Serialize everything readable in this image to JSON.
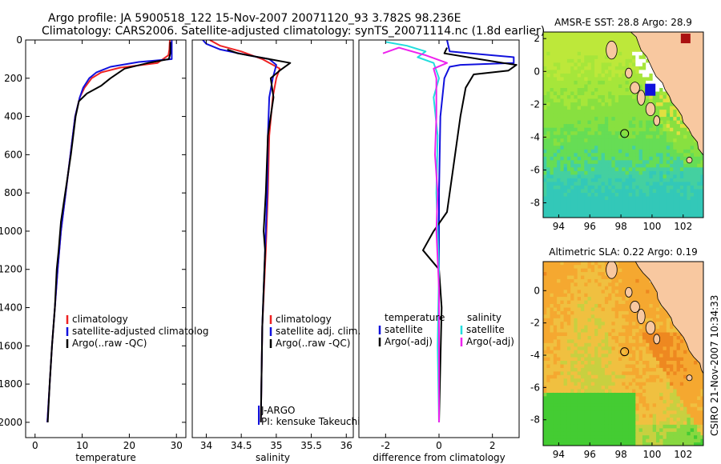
{
  "header": {
    "title_line1": "Argo profile: JA 5900518_122 15-Nov-2007 20071120_93 3.782S 98.236E",
    "title_line2": "Climatology: CARS2006. Satellite-adjusted climatology: synTS_20071114.nc (1.8d earlier)"
  },
  "side_label": "CSIRO 21-Nov-2007 10:34:33",
  "colors": {
    "red": "#ee2222",
    "blue": "#1111dd",
    "black": "#000000",
    "cyan": "#22dddd",
    "magenta": "#ee22ee",
    "land": "#f8c8a0"
  },
  "chart_data": [
    {
      "id": "temperature",
      "type": "line",
      "xlabel": "temperature",
      "ylabel": "",
      "xlim": [
        -2,
        32
      ],
      "ylim": [
        2080,
        0
      ],
      "xticks": [
        0,
        10,
        20,
        30
      ],
      "yticks": [
        0,
        200,
        400,
        600,
        800,
        1000,
        1200,
        1400,
        1600,
        1800,
        2000
      ],
      "legend": [
        "climatology",
        "satellite-adjusted climatolog",
        "Argo(..raw -QC)"
      ],
      "series": [
        {
          "name": "climatology",
          "color": "red",
          "points": [
            [
              28.6,
              0
            ],
            [
              28.5,
              50
            ],
            [
              28.3,
              80
            ],
            [
              26,
              120
            ],
            [
              18,
              145
            ],
            [
              14,
              170
            ],
            [
              12,
              200
            ],
            [
              10.5,
              250
            ],
            [
              9.5,
              300
            ],
            [
              8.5,
              400
            ],
            [
              7.5,
              600
            ],
            [
              6.5,
              800
            ],
            [
              5.5,
              1000
            ],
            [
              4.8,
              1200
            ],
            [
              4.2,
              1400
            ],
            [
              3.6,
              1600
            ],
            [
              3.1,
              1800
            ],
            [
              2.6,
              2000
            ]
          ]
        },
        {
          "name": "satellite-adjusted climatolog",
          "color": "blue",
          "points": [
            [
              29,
              0
            ],
            [
              29,
              60
            ],
            [
              29,
              100
            ],
            [
              22,
              115
            ],
            [
              16,
              140
            ],
            [
              13,
              170
            ],
            [
              11.5,
              200
            ],
            [
              10.2,
              250
            ],
            [
              9.5,
              300
            ],
            [
              8.5,
              400
            ],
            [
              7.5,
              600
            ],
            [
              6.5,
              800
            ],
            [
              5.5,
              1000
            ],
            [
              4.8,
              1200
            ],
            [
              4.2,
              1400
            ],
            [
              3.6,
              1600
            ],
            [
              3.1,
              1800
            ],
            [
              2.6,
              2000
            ]
          ]
        },
        {
          "name": "Argo(..raw -QC)",
          "color": "black",
          "points": [
            [
              28.7,
              10
            ],
            [
              28.7,
              70
            ],
            [
              28.4,
              100
            ],
            [
              24,
              120
            ],
            [
              19,
              150
            ],
            [
              16,
              200
            ],
            [
              14,
              240
            ],
            [
              11,
              280
            ],
            [
              9.3,
              320
            ],
            [
              8.6,
              400
            ],
            [
              7.6,
              600
            ],
            [
              6.4,
              800
            ],
            [
              5.5,
              950
            ],
            [
              5.0,
              1100
            ],
            [
              4.6,
              1200
            ],
            [
              4.2,
              1400
            ],
            [
              3.6,
              1600
            ],
            [
              3.1,
              1800
            ],
            [
              2.7,
              2000
            ]
          ]
        }
      ]
    },
    {
      "id": "salinity",
      "type": "line",
      "xlabel": "salinity",
      "ylabel": "",
      "xlim": [
        33.8,
        36.1
      ],
      "ylim": [
        2080,
        0
      ],
      "xticks": [
        34,
        34.5,
        35,
        35.5,
        36
      ],
      "xtick_labels": [
        "34",
        "34.5",
        "35",
        "35.5",
        "36"
      ],
      "legend": [
        "climatology",
        "satellite adj. clim.",
        "Argo(..raw -QC)"
      ],
      "annotation": [
        "J-ARGO",
        "PI: kensuke Takeuchi"
      ],
      "series": [
        {
          "name": "climatology",
          "color": "red",
          "points": [
            [
              34.05,
              0
            ],
            [
              34.2,
              30
            ],
            [
              34.5,
              60
            ],
            [
              34.8,
              100
            ],
            [
              35.05,
              150
            ],
            [
              35.0,
              200
            ],
            [
              34.95,
              300
            ],
            [
              34.9,
              500
            ],
            [
              34.88,
              800
            ],
            [
              34.85,
              1100
            ],
            [
              34.8,
              1500
            ],
            [
              34.78,
              2000
            ]
          ]
        },
        {
          "name": "satellite adj. clim.",
          "color": "blue",
          "points": [
            [
              33.95,
              0
            ],
            [
              34.0,
              20
            ],
            [
              34.2,
              50
            ],
            [
              34.6,
              80
            ],
            [
              34.9,
              100
            ],
            [
              35.0,
              130
            ],
            [
              34.95,
              200
            ],
            [
              34.9,
              300
            ],
            [
              34.88,
              500
            ],
            [
              34.87,
              800
            ],
            [
              34.84,
              1100
            ],
            [
              34.8,
              1500
            ],
            [
              34.78,
              2000
            ]
          ]
        },
        {
          "name": "Argo(..raw -QC)",
          "color": "black",
          "points": [
            [
              34.3,
              50
            ],
            [
              34.45,
              70
            ],
            [
              34.9,
              100
            ],
            [
              35.2,
              120
            ],
            [
              35.05,
              160
            ],
            [
              34.92,
              200
            ],
            [
              34.96,
              300
            ],
            [
              34.88,
              500
            ],
            [
              34.85,
              800
            ],
            [
              34.82,
              1000
            ],
            [
              34.84,
              1100
            ],
            [
              34.8,
              1500
            ],
            [
              34.78,
              2000
            ]
          ]
        }
      ]
    },
    {
      "id": "difference",
      "type": "line",
      "xlabel": "difference from climatology",
      "ylabel": "",
      "xlim": [
        -3,
        3
      ],
      "ylim": [
        2080,
        0
      ],
      "xticks": [
        -2,
        0,
        2
      ],
      "legend_left_title": "temperature",
      "legend_left": [
        "satellite",
        "Argo(-adj)"
      ],
      "legend_right_title": "salinity",
      "legend_right": [
        "satellite",
        "Argo(-adj)"
      ],
      "series": [
        {
          "name": "temperature satellite",
          "color": "blue",
          "points": [
            [
              0.3,
              0
            ],
            [
              0.4,
              60
            ],
            [
              1.2,
              70
            ],
            [
              2.8,
              90
            ],
            [
              2.8,
              120
            ],
            [
              0.8,
              130
            ],
            [
              0.4,
              140
            ],
            [
              0.2,
              200
            ],
            [
              0.05,
              400
            ],
            [
              0,
              800
            ],
            [
              0,
              2000
            ]
          ]
        },
        {
          "name": "temperature Argo(-adj)",
          "color": "black",
          "points": [
            [
              0.3,
              40
            ],
            [
              0.2,
              70
            ],
            [
              1.5,
              100
            ],
            [
              2.4,
              120
            ],
            [
              2.9,
              130
            ],
            [
              2.6,
              160
            ],
            [
              1.3,
              180
            ],
            [
              1.0,
              250
            ],
            [
              0.8,
              400
            ],
            [
              0.5,
              700
            ],
            [
              0.3,
              900
            ],
            [
              -0.2,
              1000
            ],
            [
              -0.6,
              1100
            ],
            [
              -0.3,
              1150
            ],
            [
              0,
              1200
            ],
            [
              0.1,
              1400
            ],
            [
              0,
              2000
            ]
          ]
        },
        {
          "name": "salinity satellite",
          "color": "cyan",
          "points": [
            [
              -2,
              10
            ],
            [
              -1.2,
              30
            ],
            [
              -0.5,
              60
            ],
            [
              -0.8,
              90
            ],
            [
              -0.2,
              120
            ],
            [
              0,
              200
            ],
            [
              -0.2,
              300
            ],
            [
              -0.05,
              500
            ],
            [
              -0.1,
              800
            ],
            [
              0,
              1200
            ],
            [
              -0.05,
              1600
            ],
            [
              0,
              2000
            ]
          ]
        },
        {
          "name": "salinity Argo(-adj)",
          "color": "magenta",
          "points": [
            [
              -2.1,
              70
            ],
            [
              -1.5,
              40
            ],
            [
              -0.5,
              80
            ],
            [
              0.3,
              120
            ],
            [
              -0.2,
              150
            ],
            [
              -0.1,
              200
            ],
            [
              -0.1,
              400
            ],
            [
              -0.15,
              600
            ],
            [
              -0.05,
              800
            ],
            [
              -0.1,
              1000
            ],
            [
              0,
              1300
            ],
            [
              0,
              2000
            ]
          ]
        }
      ]
    },
    {
      "id": "sst_map",
      "type": "heatmap",
      "title": "AMSR-E SST: 28.8 Argo: 28.9",
      "xlim": [
        93,
        103.3
      ],
      "ylim": [
        -8.9,
        2.4
      ],
      "xticks": [
        94,
        96,
        98,
        100,
        102
      ],
      "yticks": [
        2,
        0,
        -2,
        -4,
        -6,
        -8
      ],
      "argo_position": [
        98.236,
        -3.782
      ]
    },
    {
      "id": "sla_map",
      "type": "heatmap",
      "title": "Altimetric SLA: 0.22 Argo: 0.19",
      "xlim": [
        93,
        103.3
      ],
      "ylim": [
        -9.6,
        1.8
      ],
      "xticks": [
        94,
        96,
        98,
        100,
        102
      ],
      "yticks": [
        0,
        -2,
        -4,
        -6,
        -8
      ],
      "argo_position": [
        98.236,
        -3.782
      ]
    }
  ]
}
